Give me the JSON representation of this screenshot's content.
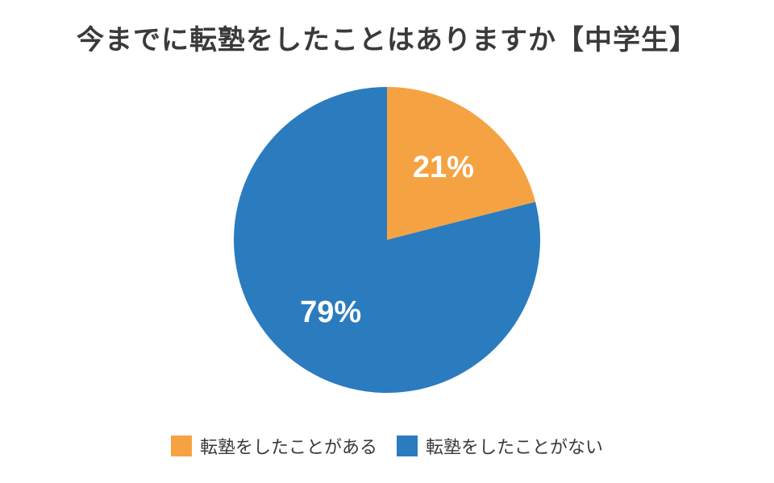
{
  "chart_data": {
    "type": "pie",
    "title": "今までに転塾をしたことはありますか【中学生】",
    "slices": [
      {
        "label": "転塾をしたことがある",
        "value": 21,
        "display": "21%",
        "color": "#F5A342"
      },
      {
        "label": "転塾をしたことがない",
        "value": 79,
        "display": "79%",
        "color": "#2B7BBF"
      }
    ],
    "legend_position": "bottom",
    "start_angle": "12 o'clock",
    "direction": "clockwise"
  }
}
